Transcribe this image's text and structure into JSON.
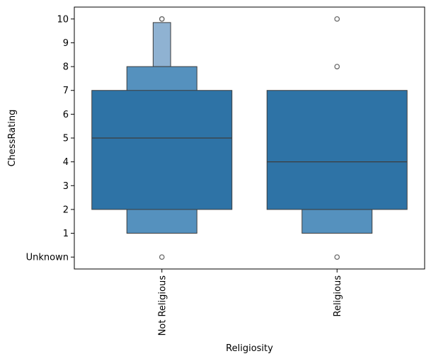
{
  "chart_data": {
    "type": "boxen",
    "title": "",
    "xlabel": "Religiosity",
    "ylabel": "ChessRating",
    "categories": [
      "Not Religious",
      "Religious"
    ],
    "y_ticks": [
      {
        "label": "Unknown",
        "value": 0
      },
      {
        "label": "1",
        "value": 1
      },
      {
        "label": "2",
        "value": 2
      },
      {
        "label": "3",
        "value": 3
      },
      {
        "label": "4",
        "value": 4
      },
      {
        "label": "5",
        "value": 5
      },
      {
        "label": "6",
        "value": 6
      },
      {
        "label": "7",
        "value": 7
      },
      {
        "label": "8",
        "value": 8
      },
      {
        "label": "9",
        "value": 9
      },
      {
        "label": "10",
        "value": 10
      }
    ],
    "ylim": [
      -0.5,
      10.5
    ],
    "grid": false,
    "colors": {
      "box_level_1": "#2e73a6",
      "box_level_2": "#5591be",
      "box_level_3": "#8fb2d2",
      "edge": "#3d3d3d",
      "outlier": "#6b6b6b"
    },
    "groups": [
      {
        "category": "Not Religious",
        "median": 5,
        "levels": [
          {
            "low": 2,
            "high": 7
          },
          {
            "low": 1,
            "high": 8
          },
          {
            "low": 8,
            "high": 9.85
          }
        ],
        "outliers": [
          10,
          10,
          0
        ]
      },
      {
        "category": "Religious",
        "median": 4,
        "levels": [
          {
            "low": 2,
            "high": 7
          },
          {
            "low": 1,
            "high": 2
          }
        ],
        "outliers": [
          10,
          8,
          0
        ]
      }
    ]
  }
}
